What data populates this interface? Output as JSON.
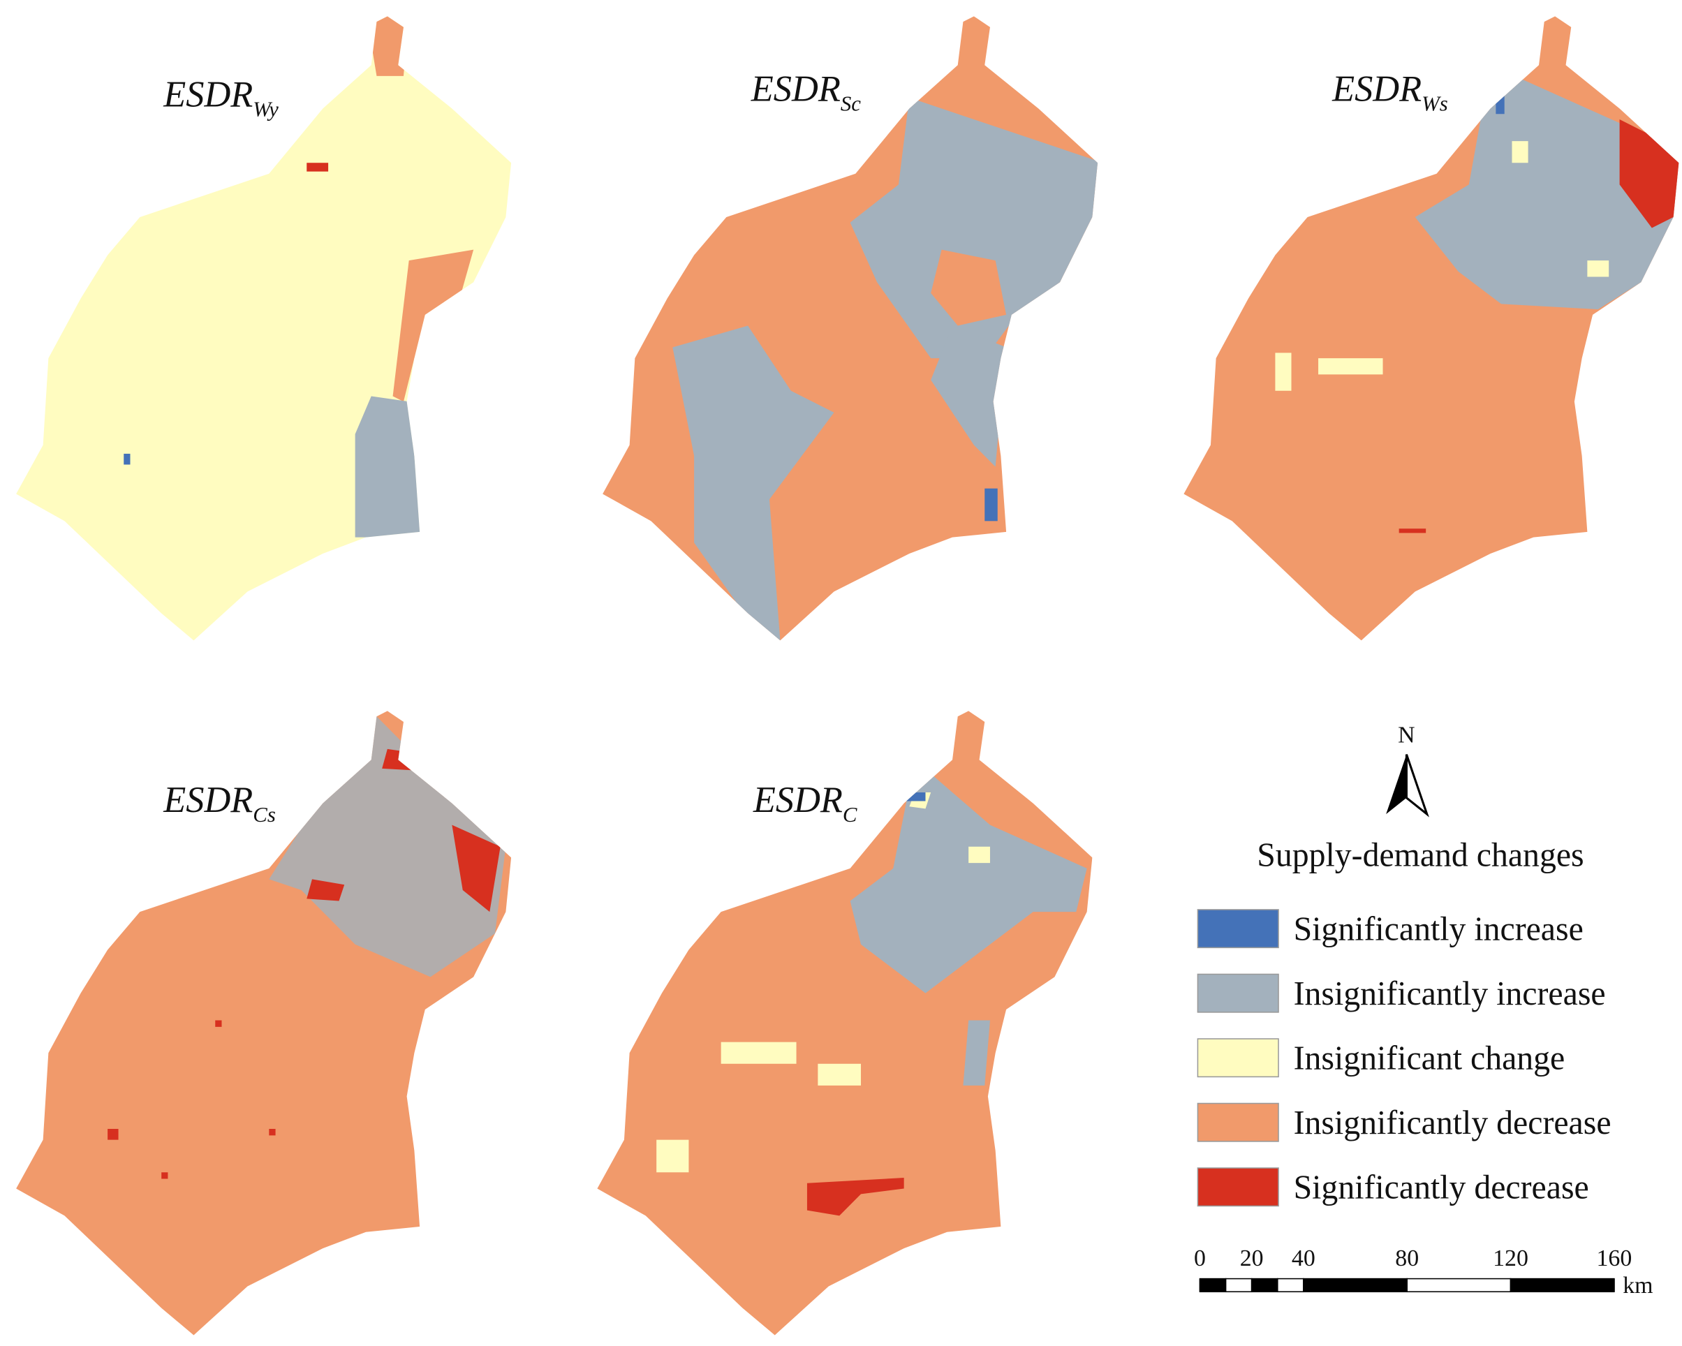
{
  "panels": [
    {
      "title": "ESDR",
      "subscript": "Wy"
    },
    {
      "title": "ESDR",
      "subscript": "Sc"
    },
    {
      "title": "ESDR",
      "subscript": "Ws"
    },
    {
      "title": "ESDR",
      "subscript": "Cs"
    },
    {
      "title": "ESDR",
      "subscript": "C"
    }
  ],
  "north": "N",
  "legend": {
    "title": "Supply-demand changes",
    "items": [
      {
        "label": "Significantly increase",
        "color": "#4472b8"
      },
      {
        "label": "Insignificantly increase",
        "color": "#a3b1bd"
      },
      {
        "label": "Insignificant change",
        "color": "#fffcc0"
      },
      {
        "label": "Insignificantly decrease",
        "color": "#f19a6b"
      },
      {
        "label": "Significantly decrease",
        "color": "#d7301f"
      }
    ]
  },
  "scale_bar": {
    "ticks": [
      0,
      20,
      40,
      80,
      120,
      160
    ],
    "unit": "km"
  }
}
